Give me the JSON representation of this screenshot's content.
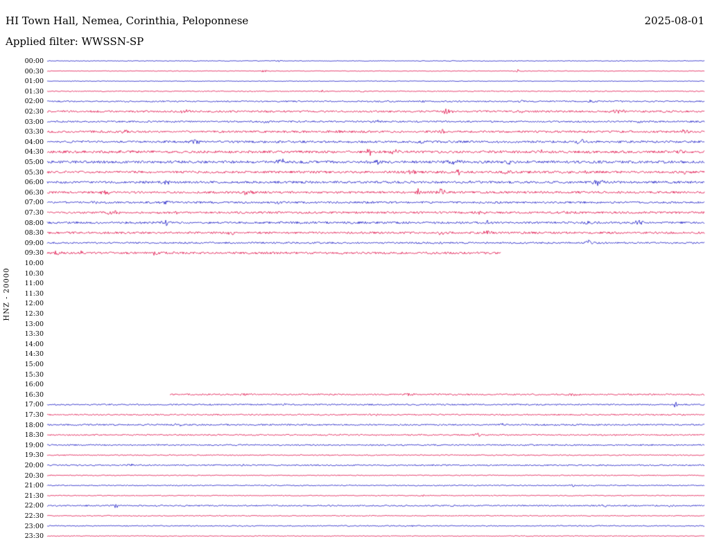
{
  "header": {
    "title": "HI Town Hall, Nemea, Corinthia, Peloponnese",
    "date": "2025-08-01",
    "filter": "Applied filter: WWSSN-SP"
  },
  "chart_data": {
    "type": "line",
    "subtype": "seismogram-helicorder",
    "station_label": "HNZ - 20000",
    "row_duration_minutes": 30,
    "time_range": [
      "00:00",
      "23:30"
    ],
    "colors": {
      "blue": "#0b0bc0",
      "red": "#de0040"
    },
    "rows": [
      {
        "t": "00:00",
        "c": "blue",
        "n": 0.5,
        "e": [
          [
            0.35,
            1.3,
            0.006
          ],
          [
            0.62,
            1.0,
            0.005
          ]
        ]
      },
      {
        "t": "00:30",
        "c": "red",
        "n": 0.5,
        "e": [
          [
            0.33,
            1.4,
            0.005
          ],
          [
            0.715,
            2.6,
            0.004
          ]
        ]
      },
      {
        "t": "01:00",
        "c": "blue",
        "n": 0.5,
        "e": [
          [
            0.5,
            0.8,
            0.01
          ]
        ]
      },
      {
        "t": "01:30",
        "c": "red",
        "n": 0.7,
        "e": [
          [
            0.42,
            1.6,
            0.006
          ],
          [
            0.48,
            1.9,
            0.005
          ]
        ]
      },
      {
        "t": "02:00",
        "c": "blue",
        "n": 1.0,
        "e": [
          [
            0.575,
            2.4,
            0.006
          ],
          [
            0.72,
            1.8,
            0.006
          ],
          [
            0.83,
            3.4,
            0.006
          ]
        ]
      },
      {
        "t": "02:30",
        "c": "red",
        "n": 1.4,
        "e": [
          [
            0.21,
            2.4,
            0.007
          ],
          [
            0.61,
            5.0,
            0.006
          ],
          [
            0.72,
            2.4,
            0.006
          ],
          [
            0.87,
            3.4,
            0.01
          ]
        ]
      },
      {
        "t": "03:00",
        "c": "blue",
        "n": 1.2,
        "e": [
          [
            0.33,
            2.0,
            0.008
          ],
          [
            0.5,
            1.8,
            0.008
          ],
          [
            0.9,
            1.8,
            0.006
          ]
        ]
      },
      {
        "t": "03:30",
        "c": "red",
        "n": 1.5,
        "e": [
          [
            0.12,
            2.0,
            0.006
          ],
          [
            0.44,
            2.4,
            0.007
          ],
          [
            0.6,
            3.4,
            0.005
          ],
          [
            0.97,
            2.8,
            0.006
          ]
        ]
      },
      {
        "t": "04:00",
        "c": "blue",
        "n": 1.5,
        "e": [
          [
            0.225,
            3.4,
            0.007
          ],
          [
            0.57,
            2.4,
            0.008
          ],
          [
            0.81,
            4.4,
            0.008
          ]
        ]
      },
      {
        "t": "04:30",
        "c": "red",
        "n": 1.8,
        "e": [
          [
            0.12,
            2.4,
            0.008
          ],
          [
            0.49,
            5.4,
            0.004
          ],
          [
            0.53,
            2.8,
            0.008
          ],
          [
            0.75,
            2.4,
            0.008
          ],
          [
            0.96,
            3.0,
            0.006
          ]
        ]
      },
      {
        "t": "05:00",
        "c": "blue",
        "n": 1.8,
        "e": [
          [
            0.355,
            3.4,
            0.01
          ],
          [
            0.5,
            2.8,
            0.008
          ],
          [
            0.62,
            3.4,
            0.012
          ],
          [
            0.7,
            2.4,
            0.008
          ]
        ]
      },
      {
        "t": "05:30",
        "c": "red",
        "n": 1.7,
        "e": [
          [
            0.555,
            2.8,
            0.007
          ],
          [
            0.625,
            4.4,
            0.005
          ],
          [
            0.7,
            2.8,
            0.007
          ],
          [
            0.82,
            2.4,
            0.007
          ],
          [
            0.97,
            2.8,
            0.006
          ]
        ]
      },
      {
        "t": "06:00",
        "c": "blue",
        "n": 1.6,
        "e": [
          [
            0.18,
            2.8,
            0.008
          ],
          [
            0.64,
            2.4,
            0.008
          ],
          [
            0.84,
            4.0,
            0.01
          ]
        ]
      },
      {
        "t": "06:30",
        "c": "red",
        "n": 1.6,
        "e": [
          [
            0.09,
            3.4,
            0.008
          ],
          [
            0.305,
            2.8,
            0.01
          ],
          [
            0.565,
            4.4,
            0.005
          ],
          [
            0.6,
            4.4,
            0.006
          ]
        ]
      },
      {
        "t": "07:00",
        "c": "blue",
        "n": 1.4,
        "e": [
          [
            0.07,
            2.2,
            0.007
          ],
          [
            0.18,
            2.2,
            0.007
          ],
          [
            0.35,
            2.2,
            0.007
          ]
        ]
      },
      {
        "t": "07:30",
        "c": "red",
        "n": 1.5,
        "e": [
          [
            0.1,
            2.8,
            0.01
          ],
          [
            0.165,
            2.8,
            0.006
          ],
          [
            0.2,
            2.4,
            0.006
          ],
          [
            0.66,
            2.2,
            0.007
          ],
          [
            0.79,
            2.2,
            0.007
          ]
        ]
      },
      {
        "t": "08:00",
        "c": "blue",
        "n": 1.5,
        "e": [
          [
            0.18,
            5.4,
            0.005
          ],
          [
            0.67,
            2.4,
            0.007
          ],
          [
            0.82,
            2.8,
            0.007
          ],
          [
            0.9,
            3.4,
            0.008
          ]
        ]
      },
      {
        "t": "08:30",
        "c": "red",
        "n": 1.5,
        "e": [
          [
            0.28,
            2.4,
            0.007
          ],
          [
            0.6,
            2.4,
            0.007
          ],
          [
            0.67,
            5.0,
            0.005
          ]
        ]
      },
      {
        "t": "09:00",
        "c": "blue",
        "n": 1.2,
        "e": [
          [
            0.6,
            2.0,
            0.007
          ],
          [
            0.825,
            3.4,
            0.008
          ]
        ]
      },
      {
        "t": "09:30",
        "c": "red",
        "n": 1.6,
        "end": 0.69,
        "e": [
          [
            0.015,
            4.0,
            0.006
          ],
          [
            0.05,
            2.8,
            0.006
          ],
          [
            0.165,
            3.4,
            0.006
          ],
          [
            0.45,
            2.4,
            0.007
          ]
        ]
      },
      {
        "t": "10:00",
        "c": "blue",
        "active": false
      },
      {
        "t": "10:30",
        "c": "red",
        "active": false
      },
      {
        "t": "11:00",
        "c": "blue",
        "active": false
      },
      {
        "t": "11:30",
        "c": "red",
        "active": false
      },
      {
        "t": "12:00",
        "c": "blue",
        "active": false
      },
      {
        "t": "12:30",
        "c": "red",
        "active": false
      },
      {
        "t": "13:00",
        "c": "blue",
        "active": false
      },
      {
        "t": "13:30",
        "c": "red",
        "active": false
      },
      {
        "t": "14:00",
        "c": "blue",
        "active": false
      },
      {
        "t": "14:30",
        "c": "red",
        "active": false
      },
      {
        "t": "15:00",
        "c": "blue",
        "active": false
      },
      {
        "t": "15:30",
        "c": "red",
        "active": false
      },
      {
        "t": "16:00",
        "c": "blue",
        "active": false
      },
      {
        "t": "16:30",
        "c": "red",
        "n": 1.1,
        "start": 0.187,
        "e": [
          [
            0.3,
            1.8,
            0.008
          ],
          [
            0.55,
            1.8,
            0.008
          ],
          [
            0.8,
            1.8,
            0.008
          ]
        ]
      },
      {
        "t": "17:00",
        "c": "blue",
        "n": 1.0,
        "e": [
          [
            0.36,
            1.8,
            0.007
          ],
          [
            0.955,
            4.0,
            0.003
          ]
        ]
      },
      {
        "t": "17:30",
        "c": "red",
        "n": 1.0,
        "e": [
          [
            0.5,
            1.6,
            0.008
          ]
        ]
      },
      {
        "t": "18:00",
        "c": "blue",
        "n": 1.1,
        "e": [
          [
            0.2,
            1.6,
            0.007
          ],
          [
            0.69,
            3.0,
            0.005
          ]
        ]
      },
      {
        "t": "18:30",
        "c": "red",
        "n": 1.0,
        "e": [
          [
            0.655,
            2.4,
            0.006
          ]
        ]
      },
      {
        "t": "19:00",
        "c": "blue",
        "n": 1.0,
        "e": [
          [
            0.17,
            1.6,
            0.007
          ]
        ]
      },
      {
        "t": "19:30",
        "c": "red",
        "n": 0.8,
        "e": []
      },
      {
        "t": "20:00",
        "c": "blue",
        "n": 1.0,
        "e": [
          [
            0.13,
            1.6,
            0.007
          ],
          [
            0.3,
            1.4,
            0.007
          ]
        ]
      },
      {
        "t": "20:30",
        "c": "red",
        "n": 0.7,
        "e": []
      },
      {
        "t": "21:00",
        "c": "blue",
        "n": 0.8,
        "e": [
          [
            0.8,
            1.6,
            0.006
          ]
        ]
      },
      {
        "t": "21:30",
        "c": "red",
        "n": 0.7,
        "e": [
          [
            0.57,
            1.4,
            0.006
          ]
        ]
      },
      {
        "t": "22:00",
        "c": "blue",
        "n": 1.0,
        "e": [
          [
            0.105,
            2.4,
            0.006
          ],
          [
            0.845,
            2.4,
            0.006
          ],
          [
            0.95,
            1.8,
            0.005
          ]
        ]
      },
      {
        "t": "22:30",
        "c": "red",
        "n": 0.7,
        "e": []
      },
      {
        "t": "23:00",
        "c": "blue",
        "n": 0.8,
        "e": [
          [
            0.55,
            1.4,
            0.006
          ]
        ]
      },
      {
        "t": "23:30",
        "c": "red",
        "n": 0.6,
        "e": []
      }
    ]
  }
}
